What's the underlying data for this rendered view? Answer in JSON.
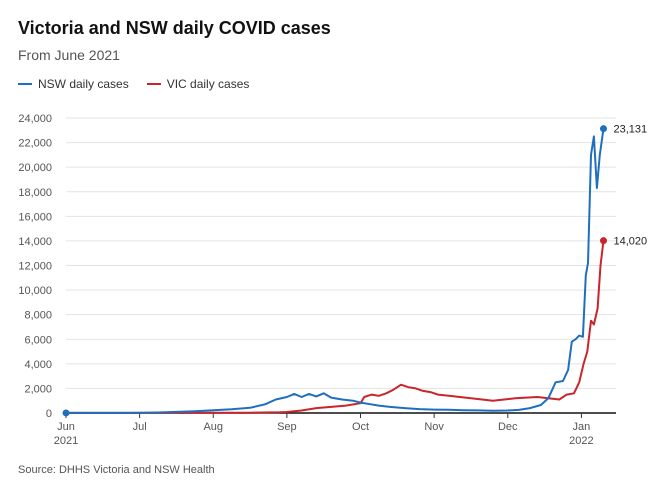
{
  "chart_data": {
    "type": "line",
    "title": "Victoria and NSW daily COVID cases",
    "subtitle": "From June 2021",
    "source": "Source: DHHS Victoria and NSW Health",
    "ylim": [
      0,
      24000
    ],
    "y_ticks": [
      "0",
      "2,000",
      "4,000",
      "6,000",
      "8,000",
      "10,000",
      "12,000",
      "14,000",
      "16,000",
      "18,000",
      "20,000",
      "22,000",
      "24,000"
    ],
    "x_ticks": [
      {
        "label": "Jun",
        "sub": "2021",
        "month": 0
      },
      {
        "label": "Jul",
        "sub": "",
        "month": 1
      },
      {
        "label": "Aug",
        "sub": "",
        "month": 2
      },
      {
        "label": "Sep",
        "sub": "",
        "month": 3
      },
      {
        "label": "Oct",
        "sub": "",
        "month": 4
      },
      {
        "label": "Nov",
        "sub": "",
        "month": 5
      },
      {
        "label": "Dec",
        "sub": "",
        "month": 6
      },
      {
        "label": "Jan",
        "sub": "2022",
        "month": 7
      }
    ],
    "grid": true,
    "legend": "top-left",
    "series": [
      {
        "name": "NSW daily cases",
        "color": "#1f6fbf",
        "end_label": "23,131",
        "points": [
          [
            0.0,
            5
          ],
          [
            0.25,
            5
          ],
          [
            0.5,
            8
          ],
          [
            0.75,
            10
          ],
          [
            1.0,
            15
          ],
          [
            1.25,
            40
          ],
          [
            1.5,
            90
          ],
          [
            1.75,
            150
          ],
          [
            2.0,
            230
          ],
          [
            2.25,
            300
          ],
          [
            2.5,
            420
          ],
          [
            2.7,
            700
          ],
          [
            2.85,
            1100
          ],
          [
            3.0,
            1300
          ],
          [
            3.1,
            1550
          ],
          [
            3.2,
            1300
          ],
          [
            3.3,
            1550
          ],
          [
            3.4,
            1350
          ],
          [
            3.5,
            1600
          ],
          [
            3.6,
            1250
          ],
          [
            3.75,
            1100
          ],
          [
            3.9,
            1000
          ],
          [
            4.0,
            850
          ],
          [
            4.1,
            750
          ],
          [
            4.25,
            600
          ],
          [
            4.4,
            500
          ],
          [
            4.6,
            400
          ],
          [
            4.8,
            320
          ],
          [
            5.0,
            280
          ],
          [
            5.2,
            260
          ],
          [
            5.4,
            230
          ],
          [
            5.6,
            210
          ],
          [
            5.8,
            180
          ],
          [
            6.0,
            200
          ],
          [
            6.15,
            250
          ],
          [
            6.3,
            400
          ],
          [
            6.45,
            650
          ],
          [
            6.55,
            1200
          ],
          [
            6.65,
            2500
          ],
          [
            6.75,
            2600
          ],
          [
            6.82,
            3500
          ],
          [
            6.87,
            5800
          ],
          [
            6.92,
            6000
          ],
          [
            6.97,
            6300
          ],
          [
            7.02,
            6200
          ],
          [
            7.06,
            11200
          ],
          [
            7.09,
            12200
          ],
          [
            7.13,
            21000
          ],
          [
            7.17,
            22500
          ],
          [
            7.21,
            18300
          ],
          [
            7.25,
            21000
          ],
          [
            7.3,
            23131
          ]
        ]
      },
      {
        "name": "VIC daily cases",
        "color": "#c9252c",
        "end_label": "14,020",
        "points": [
          [
            0.0,
            5
          ],
          [
            0.5,
            5
          ],
          [
            1.0,
            5
          ],
          [
            1.5,
            10
          ],
          [
            2.0,
            20
          ],
          [
            2.5,
            25
          ],
          [
            2.9,
            60
          ],
          [
            3.0,
            80
          ],
          [
            3.2,
            200
          ],
          [
            3.4,
            400
          ],
          [
            3.6,
            500
          ],
          [
            3.8,
            600
          ],
          [
            4.0,
            800
          ],
          [
            4.05,
            1300
          ],
          [
            4.15,
            1500
          ],
          [
            4.25,
            1400
          ],
          [
            4.35,
            1600
          ],
          [
            4.45,
            1900
          ],
          [
            4.55,
            2300
          ],
          [
            4.65,
            2100
          ],
          [
            4.75,
            2000
          ],
          [
            4.85,
            1800
          ],
          [
            4.95,
            1700
          ],
          [
            5.05,
            1500
          ],
          [
            5.2,
            1400
          ],
          [
            5.35,
            1300
          ],
          [
            5.5,
            1200
          ],
          [
            5.65,
            1100
          ],
          [
            5.8,
            1000
          ],
          [
            5.95,
            1100
          ],
          [
            6.1,
            1200
          ],
          [
            6.25,
            1250
          ],
          [
            6.4,
            1300
          ],
          [
            6.55,
            1200
          ],
          [
            6.7,
            1100
          ],
          [
            6.8,
            1500
          ],
          [
            6.9,
            1600
          ],
          [
            6.97,
            2500
          ],
          [
            7.03,
            4000
          ],
          [
            7.08,
            5000
          ],
          [
            7.13,
            7500
          ],
          [
            7.17,
            7200
          ],
          [
            7.22,
            8500
          ],
          [
            7.26,
            12000
          ],
          [
            7.3,
            14020
          ]
        ]
      }
    ]
  }
}
